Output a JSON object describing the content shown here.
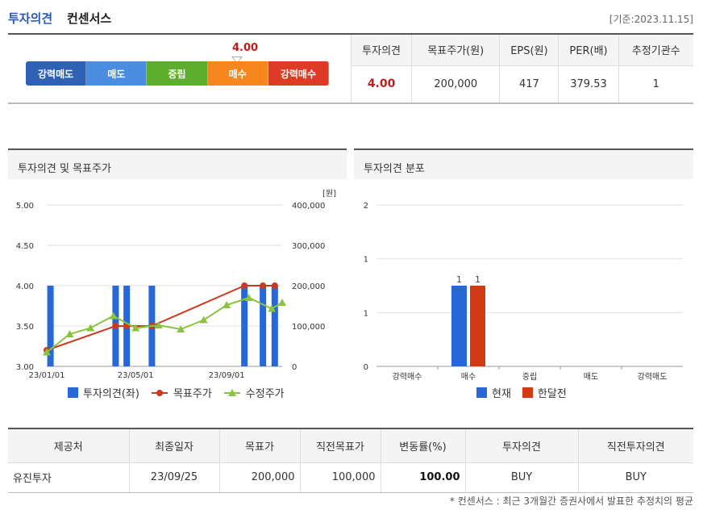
{
  "header": {
    "title_main": "투자의견",
    "title_sub": "컨센서스",
    "date_ref": "[기준:2023.11.15]"
  },
  "rating": {
    "value": "4.00",
    "segments": [
      {
        "label": "강력매도",
        "color": "#2f62b5"
      },
      {
        "label": "매도",
        "color": "#4a8de0"
      },
      {
        "label": "중립",
        "color": "#5dae2d"
      },
      {
        "label": "매수",
        "color": "#f7861e"
      },
      {
        "label": "강력매수",
        "color": "#dd3b26"
      }
    ]
  },
  "summary": {
    "headers": [
      "투자의견",
      "목표주가(원)",
      "EPS(원)",
      "PER(배)",
      "추정기관수"
    ],
    "values": [
      "4.00",
      "200,000",
      "417",
      "379.53",
      "1"
    ]
  },
  "panels": {
    "left_title": "투자의견 및 목표주가",
    "right_title": "투자의견 분포"
  },
  "chart_data": [
    {
      "type": "bar+line",
      "title": "",
      "unit_label": "[원]",
      "x_ticks": [
        "23/01/01",
        "23/05/01",
        "23/09/01"
      ],
      "y_left": {
        "ticks": [
          "5.00",
          "4.50",
          "4.00",
          "3.50",
          "3.00"
        ],
        "range": [
          3.0,
          5.0
        ]
      },
      "y_right": {
        "ticks": [
          "400,000",
          "300,000",
          "200,000",
          "100,000",
          "0"
        ],
        "range": [
          0,
          400000
        ]
      },
      "series": [
        {
          "name": "투자의견(좌)",
          "kind": "bar",
          "color": "#2668d8",
          "x": [
            "23/01/06",
            "23/04/04",
            "23/04/19",
            "23/05/23",
            "23/09/25",
            "23/10/20",
            "23/11/05"
          ],
          "values": [
            4.0,
            4.0,
            4.0,
            4.0,
            4.0,
            4.0,
            4.0
          ]
        },
        {
          "name": "목표주가",
          "kind": "line",
          "color": "#cc3a1e",
          "x": [
            "23/01/01",
            "23/04/04",
            "23/04/19",
            "23/05/23",
            "23/09/25",
            "23/10/20",
            "23/11/05"
          ],
          "values": [
            40000,
            100000,
            100000,
            100000,
            200000,
            200000,
            200000
          ]
        },
        {
          "name": "수정주가",
          "kind": "line",
          "color": "#8ac43f",
          "x": [
            "23/01/01",
            "23/02/01",
            "23/03/01",
            "23/04/01",
            "23/05/01",
            "23/06/01",
            "23/07/01",
            "23/08/01",
            "23/09/01",
            "23/10/01",
            "23/11/01",
            "23/11/15"
          ],
          "values": [
            35000,
            80000,
            95000,
            125000,
            95000,
            102000,
            92000,
            115000,
            152000,
            170000,
            143000,
            158000
          ]
        }
      ]
    },
    {
      "type": "bar",
      "title": "",
      "categories": [
        "강력매수",
        "매수",
        "중립",
        "매도",
        "강력매도"
      ],
      "y_ticks": [
        "2",
        "1",
        "1",
        "0"
      ],
      "ylim": [
        0,
        2
      ],
      "series": [
        {
          "name": "현재",
          "color": "#2668d8",
          "values": [
            0,
            1,
            0,
            0,
            0
          ]
        },
        {
          "name": "한달전",
          "color": "#d13a12",
          "values": [
            0,
            1,
            0,
            0,
            0
          ]
        }
      ]
    }
  ],
  "table": {
    "headers": [
      "제공처",
      "최종일자",
      "목표가",
      "직전목표가",
      "변동률(%)",
      "투자의견",
      "직전투자의견"
    ],
    "rows": [
      [
        "유진투자",
        "23/09/25",
        "200,000",
        "100,000",
        "100.00",
        "BUY",
        "BUY"
      ]
    ]
  },
  "footnote": "* 컨센서스 : 최근 3개월간 증권사에서 발표한 추정치의 평균"
}
